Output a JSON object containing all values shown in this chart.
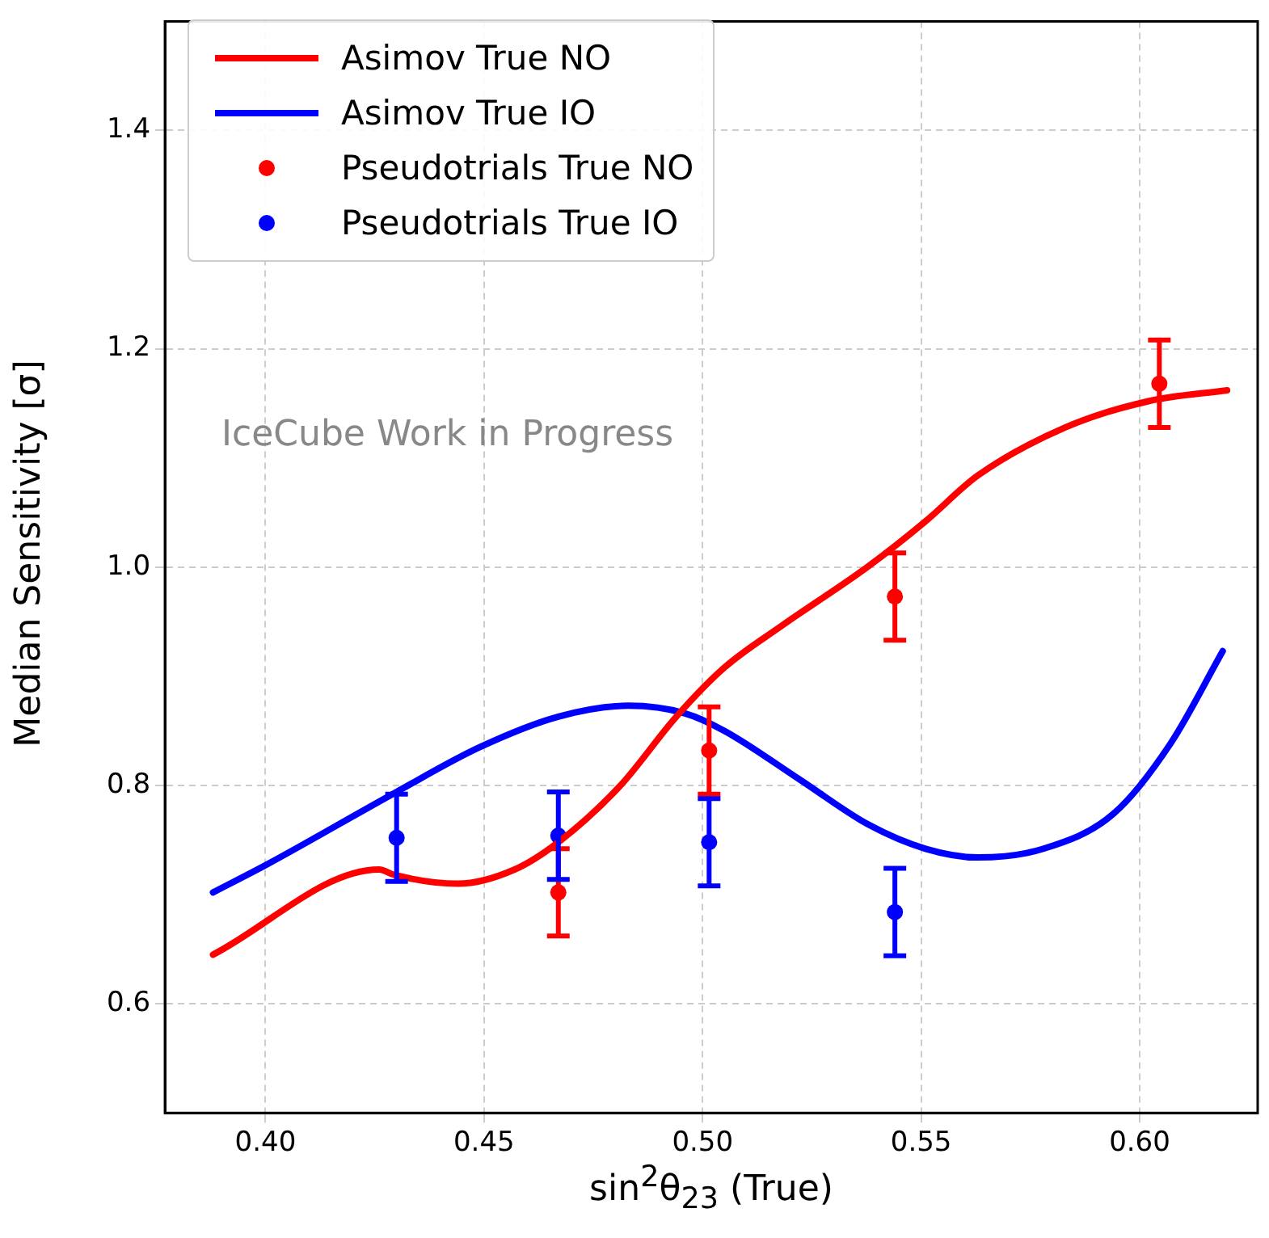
{
  "chart_data": {
    "type": "line",
    "xlabel": "sin$^{2}$θ$_{23}$ (True)",
    "ylabel": "Median Sensitivity [σ]",
    "xlim": [
      0.377,
      0.627
    ],
    "xticks": [
      {
        "value": 0.4,
        "label": "0.40"
      },
      {
        "value": 0.45,
        "label": "0.45"
      },
      {
        "value": 0.5,
        "label": "0.50"
      },
      {
        "value": 0.55,
        "label": "0.55"
      },
      {
        "value": 0.6,
        "label": "0.60"
      }
    ],
    "ylim": [
      0.5,
      1.5
    ],
    "yticks": [
      {
        "value": 0.6,
        "label": "0.6"
      },
      {
        "value": 0.8,
        "label": "0.8"
      },
      {
        "value": 1.0,
        "label": "1.0"
      },
      {
        "value": 1.2,
        "label": "1.2"
      },
      {
        "value": 1.4,
        "label": "1.4"
      }
    ],
    "grid": true,
    "legend": "top left",
    "annotations": [
      "IceCube Work in Progress"
    ],
    "series": [
      {
        "name": "Asimov True NO",
        "color": "#ff0000",
        "marker": "none",
        "x": [
          0.388,
          0.426,
          0.4295,
          0.444,
          0.457,
          0.467,
          0.481,
          0.494,
          0.505,
          0.518,
          0.538,
          0.551,
          0.563,
          0.583,
          0.602,
          0.62
        ],
        "values": [
          0.645,
          0.723,
          0.718,
          0.71,
          0.723,
          0.748,
          0.799,
          0.863,
          0.908,
          0.946,
          1.001,
          1.042,
          1.084,
          1.128,
          1.152,
          1.162
        ]
      },
      {
        "name": "Asimov True IO",
        "color": "#0000ff",
        "marker": "none",
        "x": [
          0.388,
          0.4005,
          0.4295,
          0.449,
          0.467,
          0.483,
          0.496,
          0.505,
          0.522,
          0.538,
          0.551,
          0.563,
          0.578,
          0.594,
          0.607,
          0.619
        ],
        "values": [
          0.702,
          0.728,
          0.793,
          0.835,
          0.863,
          0.873,
          0.866,
          0.85,
          0.806,
          0.764,
          0.742,
          0.734,
          0.742,
          0.774,
          0.838,
          0.923
        ]
      },
      {
        "name": "Pseudotrials True NO",
        "type": "scatter",
        "color": "#ff0000",
        "marker": "circle",
        "x": [
          0.467,
          0.5015,
          0.544,
          0.6045
        ],
        "values": [
          0.702,
          0.832,
          0.973,
          1.168
        ],
        "errors": [
          0.04,
          0.04,
          0.04,
          0.04
        ]
      },
      {
        "name": "Pseudotrials True IO",
        "type": "scatter",
        "color": "#0000ff",
        "marker": "circle",
        "x": [
          0.43,
          0.467,
          0.5015,
          0.544
        ],
        "values": [
          0.752,
          0.754,
          0.748,
          0.684
        ],
        "errors": [
          0.04,
          0.04,
          0.04,
          0.04
        ]
      }
    ]
  }
}
